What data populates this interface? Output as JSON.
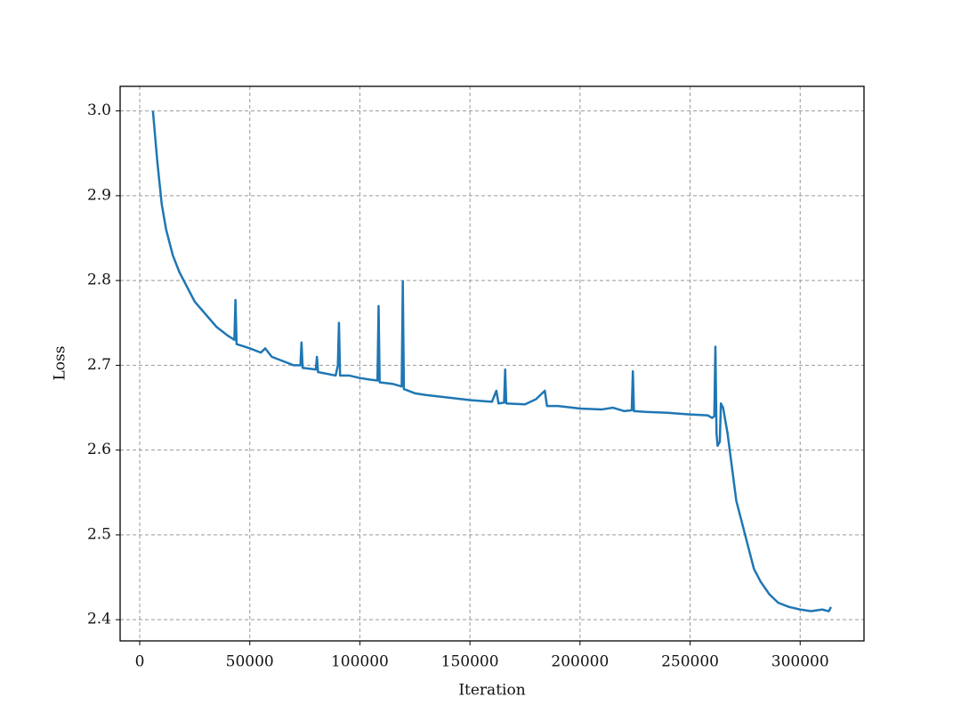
{
  "chart_data": {
    "type": "line",
    "x_label": "Iteration",
    "y_label": "Loss",
    "color": "#1f77b4",
    "grid": true,
    "xlim": [
      -8900,
      329000
    ],
    "ylim": [
      2.375,
      3.029
    ],
    "xticks": [
      0,
      50000,
      100000,
      150000,
      200000,
      250000,
      300000
    ],
    "yticks": [
      2.4,
      2.5,
      2.6,
      2.7,
      2.8,
      2.9,
      {
        "value": 3,
        "label": "3.0"
      }
    ],
    "x": [
      6000,
      8000,
      10000,
      12000,
      15000,
      18000,
      21000,
      25000,
      30000,
      35000,
      40000,
      43000,
      43500,
      44000,
      50000,
      55000,
      57000,
      60000,
      65000,
      70000,
      73000,
      73500,
      74000,
      80000,
      80500,
      81000,
      85000,
      89000,
      90000,
      90500,
      91000,
      95000,
      100000,
      105000,
      108000,
      108500,
      109000,
      115000,
      119000,
      119500,
      120000,
      125000,
      130000,
      140000,
      150000,
      160000,
      162000,
      163000,
      165500,
      166000,
      166500,
      175000,
      180000,
      184000,
      185000,
      190000,
      200000,
      210000,
      215000,
      220000,
      223500,
      224000,
      224500,
      230000,
      240000,
      250000,
      258000,
      260000,
      261000,
      261500,
      262000,
      262500,
      263500,
      264000,
      265000,
      267000,
      269000,
      271000,
      273000,
      276000,
      279000,
      282000,
      286000,
      290000,
      295000,
      300000,
      305000,
      310000,
      313000,
      314000
    ],
    "values": [
      3.0,
      2.94,
      2.89,
      2.86,
      2.83,
      2.81,
      2.795,
      2.775,
      2.76,
      2.745,
      2.735,
      2.73,
      2.777,
      2.725,
      2.72,
      2.715,
      2.72,
      2.71,
      2.705,
      2.7,
      2.7,
      2.727,
      2.697,
      2.695,
      2.71,
      2.692,
      2.69,
      2.688,
      2.7,
      2.75,
      2.688,
      2.688,
      2.685,
      2.683,
      2.682,
      2.77,
      2.68,
      2.678,
      2.675,
      2.799,
      2.672,
      2.667,
      2.665,
      2.662,
      2.659,
      2.657,
      2.67,
      2.655,
      2.656,
      2.695,
      2.655,
      2.654,
      2.66,
      2.67,
      2.652,
      2.652,
      2.649,
      2.648,
      2.65,
      2.646,
      2.647,
      2.693,
      2.646,
      2.645,
      2.644,
      2.642,
      2.641,
      2.638,
      2.64,
      2.722,
      2.62,
      2.605,
      2.61,
      2.655,
      2.65,
      2.62,
      2.58,
      2.54,
      2.52,
      2.49,
      2.46,
      2.445,
      2.43,
      2.42,
      2.415,
      2.412,
      2.41,
      2.412,
      2.41,
      2.415
    ]
  }
}
